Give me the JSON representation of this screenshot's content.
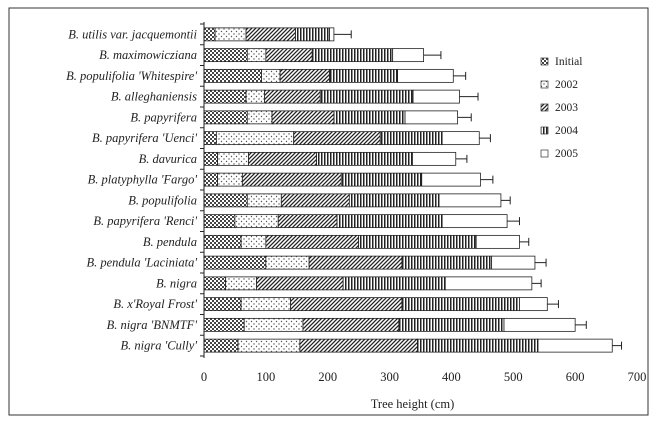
{
  "chart_data": {
    "type": "bar",
    "orientation": "horizontal",
    "stacked": true,
    "xlabel": "Tree height (cm)",
    "ylabel": "",
    "xlim": [
      0,
      700
    ],
    "xticks": [
      0,
      100,
      200,
      300,
      400,
      500,
      600,
      700
    ],
    "grid": false,
    "legend_position": "right",
    "categories": [
      "B. utilis var. jacquemontii",
      "B. maximowicziana",
      "B. populifolia 'Whitespire'",
      "B. alleghaniensis",
      "B. papyrifera",
      "B. papyrifera 'Uenci'",
      "B. davurica",
      "B. platyphylla 'Fargo'",
      "B. populifolia",
      "B. papyrifera 'Renci'",
      "B. pendula",
      "B. pendula 'Laciniata'",
      "B. nigra",
      "B. x'Royal Frost'",
      "B. nigra 'BNMTF'",
      "B. nigra 'Cully'"
    ],
    "series": [
      {
        "name": "Initial",
        "pattern": "checker",
        "values": [
          18,
          70,
          93,
          68,
          70,
          20,
          22,
          22,
          70,
          50,
          60,
          100,
          35,
          60,
          65,
          55
        ]
      },
      {
        "name": "2002",
        "pattern": "dots",
        "values": [
          50,
          30,
          30,
          30,
          40,
          125,
          50,
          40,
          55,
          70,
          40,
          70,
          50,
          80,
          95,
          100
        ]
      },
      {
        "name": "2003",
        "pattern": "hatch",
        "values": [
          80,
          75,
          80,
          90,
          100,
          140,
          110,
          160,
          110,
          95,
          150,
          150,
          140,
          180,
          155,
          190
        ]
      },
      {
        "name": "2004",
        "pattern": "vlines",
        "values": [
          55,
          130,
          110,
          150,
          115,
          100,
          155,
          130,
          145,
          170,
          190,
          145,
          165,
          190,
          170,
          195
        ]
      },
      {
        "name": "2005",
        "pattern": "white",
        "values": [
          7,
          50,
          90,
          75,
          85,
          60,
          70,
          95,
          100,
          105,
          70,
          70,
          140,
          45,
          115,
          120
        ]
      }
    ],
    "totals": [
      210,
      355,
      403,
      413,
      410,
      445,
      407,
      447,
      480,
      490,
      510,
      535,
      530,
      555,
      600,
      660
    ],
    "error": [
      28,
      28,
      20,
      30,
      22,
      18,
      18,
      20,
      15,
      20,
      15,
      18,
      15,
      18,
      18,
      15
    ]
  }
}
